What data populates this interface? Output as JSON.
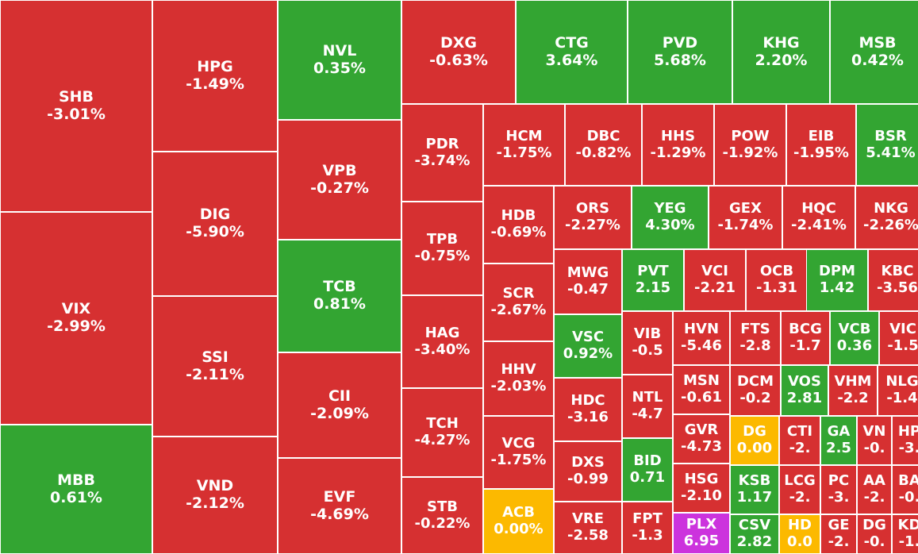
{
  "colors": {
    "down": "#d63031",
    "up": "#33a532",
    "flat": "#fcb900",
    "ceiling": "#cc33dd"
  },
  "cells": [
    {
      "ticker": "SHB",
      "change": "-3.01%",
      "status": "down"
    },
    {
      "ticker": "VIX",
      "change": "-2.99%",
      "status": "down"
    },
    {
      "ticker": "MBB",
      "change": "0.61%",
      "status": "up"
    },
    {
      "ticker": "HPG",
      "change": "-1.49%",
      "status": "down"
    },
    {
      "ticker": "DIG",
      "change": "-5.90%",
      "status": "down"
    },
    {
      "ticker": "SSI",
      "change": "-2.11%",
      "status": "down"
    },
    {
      "ticker": "VND",
      "change": "-2.12%",
      "status": "down"
    },
    {
      "ticker": "NVL",
      "change": "0.35%",
      "status": "up"
    },
    {
      "ticker": "VPB",
      "change": "-0.27%",
      "status": "down"
    },
    {
      "ticker": "TCB",
      "change": "0.81%",
      "status": "up"
    },
    {
      "ticker": "CII",
      "change": "-2.09%",
      "status": "down"
    },
    {
      "ticker": "EVF",
      "change": "-4.69%",
      "status": "down"
    },
    {
      "ticker": "DXG",
      "change": "-0.63%",
      "status": "down"
    },
    {
      "ticker": "CTG",
      "change": "3.64%",
      "status": "up"
    },
    {
      "ticker": "PVD",
      "change": "5.68%",
      "status": "up"
    },
    {
      "ticker": "KHG",
      "change": "2.20%",
      "status": "up"
    },
    {
      "ticker": "MSB",
      "change": "0.42%",
      "status": "up"
    },
    {
      "ticker": "PDR",
      "change": "-3.74%",
      "status": "down"
    },
    {
      "ticker": "TPB",
      "change": "-0.75%",
      "status": "down"
    },
    {
      "ticker": "HAG",
      "change": "-3.40%",
      "status": "down"
    },
    {
      "ticker": "TCH",
      "change": "-4.27%",
      "status": "down"
    },
    {
      "ticker": "STB",
      "change": "-0.22%",
      "status": "down"
    },
    {
      "ticker": "HCM",
      "change": "-1.75%",
      "status": "down"
    },
    {
      "ticker": "DBC",
      "change": "-0.82%",
      "status": "down"
    },
    {
      "ticker": "HHS",
      "change": "-1.29%",
      "status": "down"
    },
    {
      "ticker": "POW",
      "change": "-1.92%",
      "status": "down"
    },
    {
      "ticker": "EIB",
      "change": "-1.95%",
      "status": "down"
    },
    {
      "ticker": "BSR",
      "change": "5.41%",
      "status": "up"
    },
    {
      "ticker": "HDB",
      "change": "-0.69%",
      "status": "down"
    },
    {
      "ticker": "SCR",
      "change": "-2.67%",
      "status": "down"
    },
    {
      "ticker": "HHV",
      "change": "-2.03%",
      "status": "down"
    },
    {
      "ticker": "VCG",
      "change": "-1.75%",
      "status": "down"
    },
    {
      "ticker": "ACB",
      "change": "0.00%",
      "status": "flat"
    },
    {
      "ticker": "ORS",
      "change": "-2.27%",
      "status": "down"
    },
    {
      "ticker": "YEG",
      "change": "4.30%",
      "status": "up"
    },
    {
      "ticker": "GEX",
      "change": "-1.74%",
      "status": "down"
    },
    {
      "ticker": "HQC",
      "change": "-2.41%",
      "status": "down"
    },
    {
      "ticker": "NKG",
      "change": "-2.26%",
      "status": "down"
    },
    {
      "ticker": "MWG",
      "change": "-0.47",
      "status": "down"
    },
    {
      "ticker": "PVT",
      "change": "2.15",
      "status": "up"
    },
    {
      "ticker": "VCI",
      "change": "-2.21",
      "status": "down"
    },
    {
      "ticker": "OCB",
      "change": "-1.31",
      "status": "down"
    },
    {
      "ticker": "DPM",
      "change": "1.42",
      "status": "up"
    },
    {
      "ticker": "KBC",
      "change": "-3.56",
      "status": "down"
    },
    {
      "ticker": "VSC",
      "change": "0.92%",
      "status": "up"
    },
    {
      "ticker": "HDC",
      "change": "-3.16",
      "status": "down"
    },
    {
      "ticker": "DXS",
      "change": "-0.99",
      "status": "down"
    },
    {
      "ticker": "VRE",
      "change": "-2.58",
      "status": "down"
    },
    {
      "ticker": "VIB",
      "change": "-0.5",
      "status": "down"
    },
    {
      "ticker": "NTL",
      "change": "-4.7",
      "status": "down"
    },
    {
      "ticker": "BID",
      "change": "0.71",
      "status": "up"
    },
    {
      "ticker": "FPT",
      "change": "-1.3",
      "status": "down"
    },
    {
      "ticker": "HVN",
      "change": "-5.46",
      "status": "down"
    },
    {
      "ticker": "MSN",
      "change": "-0.61",
      "status": "down"
    },
    {
      "ticker": "GVR",
      "change": "-4.73",
      "status": "down"
    },
    {
      "ticker": "HSG",
      "change": "-2.10",
      "status": "down"
    },
    {
      "ticker": "PLX",
      "change": "6.95",
      "status": "ceiling"
    },
    {
      "ticker": "FTS",
      "change": "-2.8",
      "status": "down"
    },
    {
      "ticker": "BCG",
      "change": "-1.7",
      "status": "down"
    },
    {
      "ticker": "VCB",
      "change": "0.36",
      "status": "up"
    },
    {
      "ticker": "VIC",
      "change": "-1.5",
      "status": "down"
    },
    {
      "ticker": "DCM",
      "change": "-0.2",
      "status": "down"
    },
    {
      "ticker": "VOS",
      "change": "2.81",
      "status": "up"
    },
    {
      "ticker": "VHM",
      "change": "-2.2",
      "status": "down"
    },
    {
      "ticker": "NLG",
      "change": "-1.4",
      "status": "down"
    },
    {
      "ticker": "DG",
      "change": "0.00",
      "status": "flat"
    },
    {
      "ticker": "KSB",
      "change": "1.17",
      "status": "up"
    },
    {
      "ticker": "CSV",
      "change": "2.82",
      "status": "up"
    },
    {
      "ticker": "CTI",
      "change": "-2.",
      "status": "down"
    },
    {
      "ticker": "GA",
      "change": "2.5",
      "status": "up"
    },
    {
      "ticker": "VN",
      "change": "-0.",
      "status": "down"
    },
    {
      "ticker": "HP",
      "change": "-3.",
      "status": "down"
    },
    {
      "ticker": "LCG",
      "change": "-2.",
      "status": "down"
    },
    {
      "ticker": "PC",
      "change": "-3.",
      "status": "down"
    },
    {
      "ticker": "AA",
      "change": "-2.",
      "status": "down"
    },
    {
      "ticker": "BA",
      "change": "-0.",
      "status": "down"
    },
    {
      "ticker": "HD",
      "change": "0.0",
      "status": "flat"
    },
    {
      "ticker": "GE",
      "change": "-2.",
      "status": "down"
    },
    {
      "ticker": "DG",
      "change": "-0.",
      "status": "down"
    },
    {
      "ticker": "KD",
      "change": "-1.",
      "status": "down"
    }
  ]
}
